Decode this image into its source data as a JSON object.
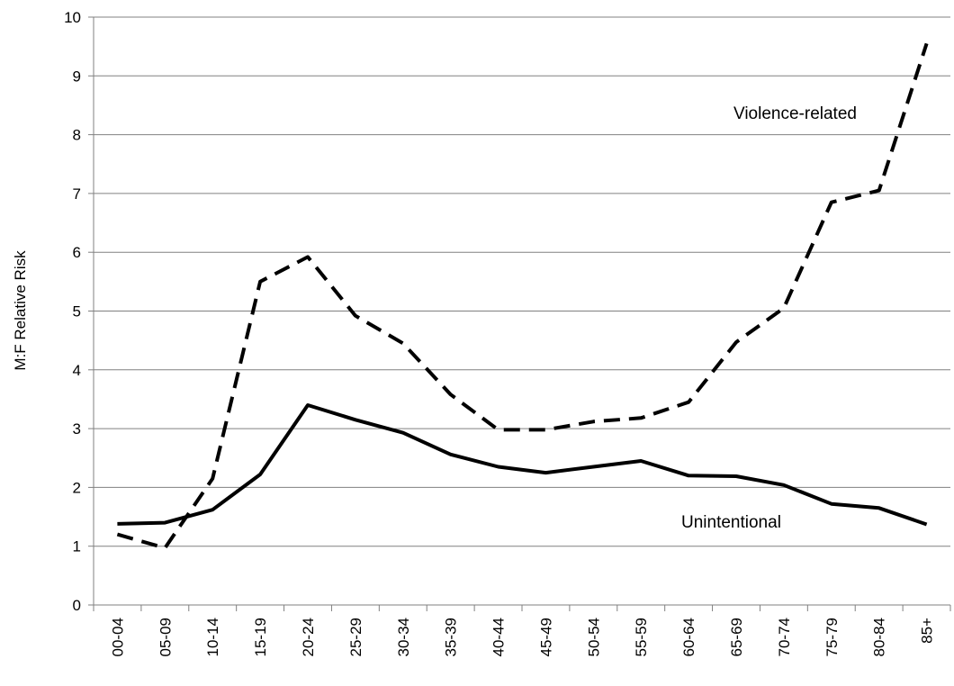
{
  "chart_data": {
    "type": "line",
    "title": "",
    "xlabel": "",
    "ylabel": "M:F Relative Risk",
    "ylim": [
      0,
      10
    ],
    "yticks": [
      0,
      1,
      2,
      3,
      4,
      5,
      6,
      7,
      8,
      9,
      10
    ],
    "grid": true,
    "categories": [
      "00-04",
      "05-09",
      "10-14",
      "15-19",
      "20-24",
      "25-29",
      "30-34",
      "35-39",
      "40-44",
      "45-49",
      "50-54",
      "55-59",
      "60-64",
      "65-69",
      "70-74",
      "75-79",
      "80-84",
      "85+"
    ],
    "series": [
      {
        "name": "Violence-related",
        "style": "dashed",
        "color": "#000000",
        "values": [
          1.2,
          0.97,
          2.15,
          5.5,
          5.92,
          4.92,
          4.45,
          3.58,
          2.98,
          2.98,
          3.12,
          3.18,
          3.45,
          4.47,
          5.05,
          6.85,
          7.05,
          9.55
        ]
      },
      {
        "name": "Unintentional",
        "style": "solid",
        "color": "#000000",
        "values": [
          1.38,
          1.4,
          1.62,
          2.22,
          3.4,
          3.15,
          2.93,
          2.56,
          2.35,
          2.25,
          2.35,
          2.45,
          2.2,
          2.19,
          2.04,
          1.72,
          1.65,
          1.37
        ]
      }
    ],
    "annotations": [
      {
        "text": "Violence-related",
        "series": 0
      },
      {
        "text": "Unintentional",
        "series": 1
      }
    ]
  }
}
